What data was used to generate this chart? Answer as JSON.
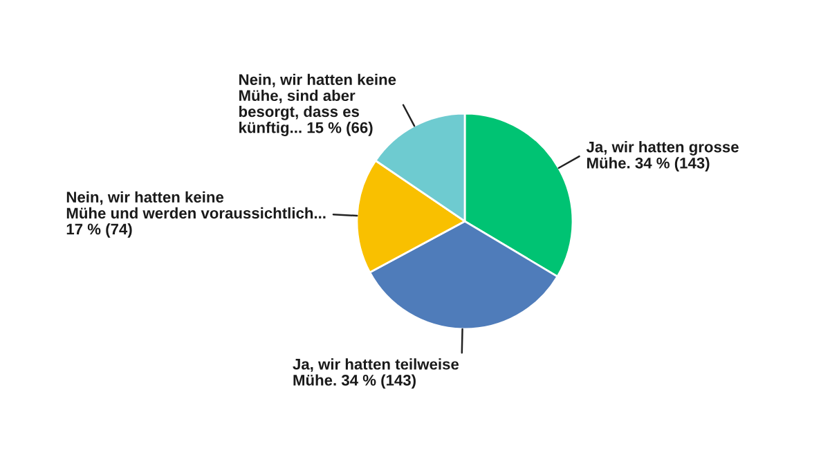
{
  "chart_data": {
    "type": "pie",
    "categories": [
      "Ja, wir hatten grosse\nMühe.",
      "Ja, wir hatten teilweise\nMühe.",
      "Nein, wir hatten keine\nMühe und werden voraussichtlich...\n",
      "Nein, wir hatten keine\nMühe, sind aber\nbesorgt, dass es\nkünftig..."
    ],
    "values": [
      143,
      143,
      74,
      66
    ],
    "value_labels": [
      "34 % (143)",
      "34 % (143)",
      "17 % (74)",
      "15 % (66)"
    ],
    "colors": [
      "#00c373",
      "#4f7cba",
      "#f9c000",
      "#6ecbd0"
    ]
  }
}
